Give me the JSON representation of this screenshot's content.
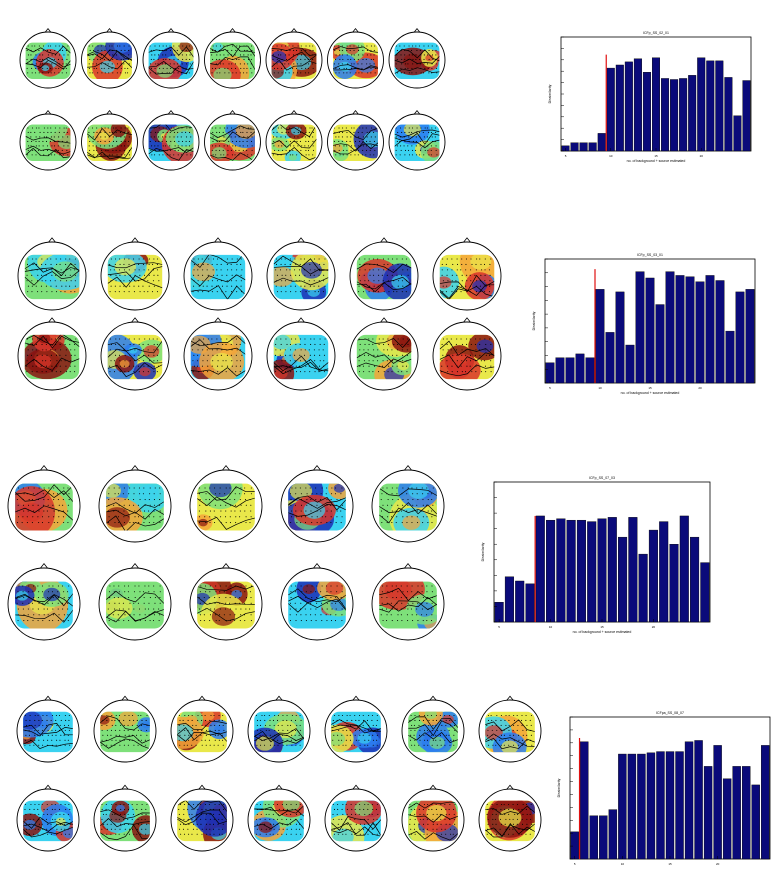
{
  "chart_data": [
    {
      "type": "bar",
      "title": "ICFp_SS_02_01",
      "xlabel": "no. of background + source estimated",
      "ylabel": "Dissimilarity",
      "ylim": [
        0,
        1.1
      ],
      "xtick_labels": [
        "5",
        "10",
        "15",
        "20"
      ],
      "ytick_labels": [
        "",
        "",
        "",
        "",
        "",
        "",
        "",
        "",
        "",
        "",
        ""
      ],
      "values": [
        0.05,
        0.08,
        0.08,
        0.08,
        0.17,
        0.8,
        0.83,
        0.86,
        0.89,
        0.76,
        0.9,
        0.7,
        0.69,
        0.7,
        0.73,
        0.9,
        0.87,
        0.87,
        0.71,
        0.34,
        0.68
      ],
      "marker_after_bar": 5,
      "marker_height": 0.93,
      "maps_per_row": 7
    },
    {
      "type": "bar",
      "title": "ICFp_SS_03_01",
      "xlabel": "no. of background + source estimated",
      "ylabel": "Dissimilarity",
      "ylim": [
        0,
        0.98
      ],
      "xtick_labels": [
        "5",
        "10",
        "15",
        "20"
      ],
      "ytick_labels": [
        "",
        "",
        "",
        "",
        "",
        "",
        "",
        "",
        "",
        ""
      ],
      "values": [
        0.16,
        0.2,
        0.2,
        0.23,
        0.2,
        0.74,
        0.4,
        0.72,
        0.3,
        0.88,
        0.83,
        0.62,
        0.88,
        0.85,
        0.84,
        0.8,
        0.85,
        0.81,
        0.41,
        0.72,
        0.74
      ],
      "marker_after_bar": 5,
      "marker_height": 0.9,
      "maps_per_row": 6
    },
    {
      "type": "bar",
      "title": "ICFp_SS_07_03",
      "xlabel": "no. of background + source estimated",
      "ylabel": "Dissimilarity",
      "ylim": [
        0,
        0.99
      ],
      "xtick_labels": [
        "5",
        "10",
        "15",
        "20"
      ],
      "ytick_labels": [
        "",
        "",
        "",
        "",
        "",
        "",
        "",
        "",
        "",
        ""
      ],
      "values": [
        0.14,
        0.32,
        0.29,
        0.27,
        0.75,
        0.72,
        0.73,
        0.72,
        0.72,
        0.71,
        0.73,
        0.74,
        0.6,
        0.74,
        0.48,
        0.65,
        0.71,
        0.55,
        0.75,
        0.6,
        0.42
      ],
      "marker_after_bar": 4,
      "marker_height": 0.75,
      "maps_per_row": 5
    },
    {
      "type": "bar",
      "title": "ICFpa_SS_08_07",
      "xlabel": "no. of background + source estimated",
      "ylabel": "Dissimilarity",
      "ylim": [
        0,
        1.15
      ],
      "xtick_labels": [
        "5",
        "10",
        "15",
        "20"
      ],
      "ytick_labels": [
        "",
        "",
        "",
        "",
        "",
        "",
        "",
        "",
        "",
        "",
        "",
        ""
      ],
      "values": [
        0.22,
        0.95,
        0.35,
        0.35,
        0.4,
        0.85,
        0.85,
        0.85,
        0.86,
        0.87,
        0.87,
        0.87,
        0.95,
        0.96,
        0.75,
        0.92,
        0.65,
        0.75,
        0.75,
        0.6,
        0.92
      ],
      "marker_after_bar": 1,
      "marker_height": 0.98,
      "maps_per_row": 7
    }
  ]
}
